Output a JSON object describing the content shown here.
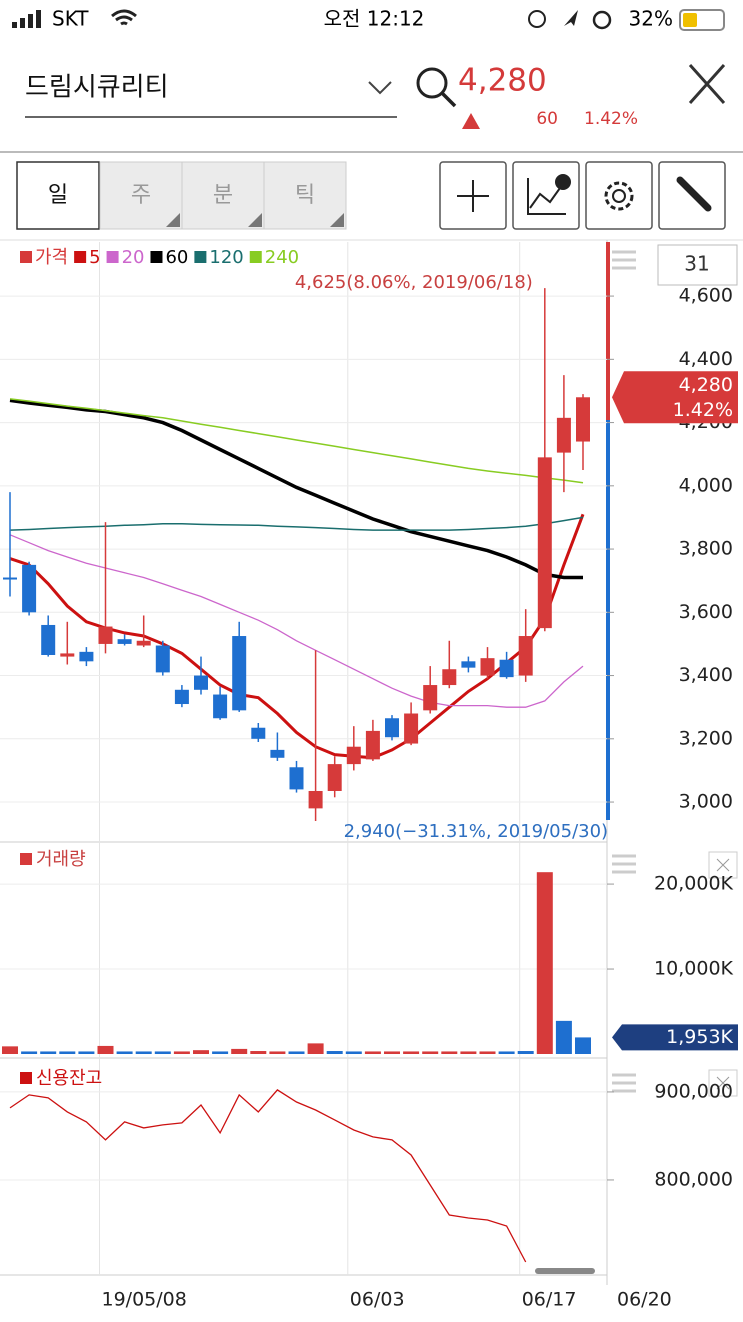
{
  "status_bar": {
    "carrier": "SKT",
    "time": "오전 12:12",
    "battery": "32%"
  },
  "header": {
    "stock_name": "드림시큐리티",
    "price": "4,280",
    "change": "60",
    "change_pct": "1.42%"
  },
  "period_tabs": [
    "일",
    "주",
    "분",
    "틱"
  ],
  "visible_count": "31",
  "chart_data": [
    {
      "type": "candlestick",
      "name": "가격",
      "up_color": "#d63a3a",
      "down_color": "#1e6fd0",
      "categories": [
        null,
        null,
        null,
        null,
        null,
        "19/05/08",
        null,
        null,
        null,
        null,
        null,
        null,
        null,
        null,
        null,
        null,
        null,
        null,
        "06/03",
        null,
        null,
        null,
        null,
        null,
        null,
        null,
        null,
        "06/17",
        null,
        null,
        "06/20"
      ],
      "open": [
        3710,
        3750,
        3560,
        3460,
        3475,
        3500,
        3515,
        3495,
        3495,
        3355,
        3400,
        3340,
        3525,
        3235,
        3165,
        3110,
        2980,
        3035,
        3120,
        3135,
        3265,
        3185,
        3290,
        3370,
        3445,
        3400,
        3450,
        3400,
        3550,
        4105,
        4140
      ],
      "high": [
        3980,
        3760,
        3590,
        3570,
        3490,
        3885,
        3530,
        3590,
        3510,
        3370,
        3460,
        3365,
        3570,
        3250,
        3220,
        3130,
        3480,
        3145,
        3240,
        3260,
        3275,
        3315,
        3430,
        3510,
        3460,
        3490,
        3475,
        3610,
        4625,
        4350,
        4290
      ],
      "low": [
        3650,
        3590,
        3460,
        3435,
        3430,
        3470,
        3495,
        3490,
        3400,
        3300,
        3340,
        3260,
        3285,
        3190,
        3130,
        3030,
        2940,
        3015,
        3100,
        3130,
        3195,
        3180,
        3280,
        3360,
        3410,
        3390,
        3390,
        3380,
        3540,
        3980,
        4050
      ],
      "close": [
        3705,
        3600,
        3465,
        3470,
        3445,
        3555,
        3500,
        3510,
        3410,
        3310,
        3355,
        3265,
        3290,
        3200,
        3140,
        3040,
        3035,
        3120,
        3175,
        3225,
        3205,
        3280,
        3370,
        3420,
        3425,
        3455,
        3395,
        3525,
        4090,
        4215,
        4280
      ],
      "series": [
        {
          "name": "5",
          "color": "#cc1111",
          "width": 3,
          "values": [
            3770,
            3750,
            3690,
            3620,
            3570,
            3550,
            3535,
            3525,
            3500,
            3470,
            3420,
            3370,
            3340,
            3330,
            3280,
            3220,
            3175,
            3150,
            3145,
            3140,
            3165,
            3200,
            3250,
            3300,
            3350,
            3390,
            3440,
            3490,
            3580,
            3750,
            3910
          ]
        },
        {
          "name": "20",
          "color": "#cc66cc",
          "width": 1.3,
          "values": [
            3845,
            3820,
            3795,
            3775,
            3755,
            3740,
            3725,
            3710,
            3690,
            3670,
            3650,
            3625,
            3600,
            3575,
            3545,
            3510,
            3480,
            3450,
            3420,
            3390,
            3360,
            3335,
            3315,
            3305,
            3305,
            3305,
            3300,
            3300,
            3320,
            3380,
            3430
          ]
        },
        {
          "name": "60",
          "color": "#000000",
          "width": 3.5,
          "values": [
            4270,
            4262,
            4255,
            4248,
            4240,
            4235,
            4225,
            4215,
            4200,
            4175,
            4145,
            4115,
            4085,
            4055,
            4025,
            3995,
            3970,
            3945,
            3920,
            3895,
            3875,
            3855,
            3840,
            3825,
            3810,
            3795,
            3775,
            3750,
            3720,
            3710,
            3710
          ]
        },
        {
          "name": "120",
          "color": "#1a6e6e",
          "width": 1.5,
          "values": [
            3860,
            3862,
            3865,
            3868,
            3870,
            3872,
            3875,
            3877,
            3880,
            3880,
            3878,
            3877,
            3876,
            3875,
            3872,
            3870,
            3868,
            3865,
            3862,
            3860,
            3860,
            3860,
            3860,
            3860,
            3862,
            3865,
            3868,
            3872,
            3880,
            3890,
            3900
          ]
        },
        {
          "name": "240",
          "color": "#88cc22",
          "width": 1.5,
          "values": [
            4275,
            4268,
            4260,
            4252,
            4245,
            4238,
            4230,
            4222,
            4215,
            4205,
            4195,
            4185,
            4175,
            4165,
            4155,
            4145,
            4135,
            4125,
            4115,
            4105,
            4095,
            4085,
            4075,
            4065,
            4055,
            4047,
            4040,
            4033,
            4025,
            4018,
            4010
          ]
        }
      ],
      "ylim": [
        2880,
        4771
      ],
      "yticks": [
        {
          "value": 3000,
          "label": "3,000"
        },
        {
          "value": 3200,
          "label": "3,200"
        },
        {
          "value": 3400,
          "label": "3,400"
        },
        {
          "value": 3600,
          "label": "3,600"
        },
        {
          "value": 3800,
          "label": "3,800"
        },
        {
          "value": 4000,
          "label": "4,000"
        },
        {
          "value": 4200,
          "label": "4,200"
        },
        {
          "value": 4400,
          "label": "4,400"
        },
        {
          "value": 4600,
          "label": "4,600"
        }
      ],
      "high_annotation": "4,625(8.06%, 2019/06/18)",
      "low_annotation": "2,940(−31.31%, 2019/05/30)",
      "last_price_label": "4,280",
      "last_change_label": "1.42%"
    },
    {
      "type": "bar",
      "name": "거래량",
      "values": [
        900,
        300,
        300,
        300,
        300,
        950,
        300,
        300,
        300,
        300,
        450,
        300,
        600,
        350,
        300,
        300,
        1250,
        350,
        300,
        300,
        300,
        300,
        300,
        300,
        300,
        300,
        300,
        350,
        21400,
        3900,
        1953
      ],
      "colors": [
        "#d63a3a",
        "#1e6fd0",
        "#1e6fd0",
        "#1e6fd0",
        "#1e6fd0",
        "#d63a3a",
        "#1e6fd0",
        "#1e6fd0",
        "#1e6fd0",
        "#d63a3a",
        "#d63a3a",
        "#1e6fd0",
        "#d63a3a",
        "#d63a3a",
        "#d63a3a",
        "#1e6fd0",
        "#d63a3a",
        "#1e6fd0",
        "#1e6fd0",
        "#d63a3a",
        "#d63a3a",
        "#d63a3a",
        "#d63a3a",
        "#d63a3a",
        "#d63a3a",
        "#d63a3a",
        "#1e6fd0",
        "#1e6fd0",
        "#d63a3a",
        "#1e6fd0",
        "#1e6fd0"
      ],
      "ylim": [
        0,
        24600
      ],
      "yticks": [
        {
          "value": 10000,
          "label": "10,000K"
        },
        {
          "value": 20000,
          "label": "20,000K"
        }
      ],
      "last_value_label": "1,953K"
    },
    {
      "type": "line",
      "series": [
        {
          "name": "신용잔고",
          "color": "#cc1111",
          "values": [
            881800,
            896600,
            893200,
            877300,
            865900,
            845500,
            865900,
            859100,
            862500,
            864800,
            885200,
            853400,
            896600,
            877300,
            902300,
            888600,
            879500,
            868200,
            856800,
            848900,
            845500,
            828400,
            794300,
            760200,
            756800,
            754500,
            747700,
            706800,
            null,
            null,
            null
          ]
        }
      ],
      "ylim": [
        697700,
        934000
      ],
      "yticks": [
        {
          "value": 800000,
          "label": "800,000"
        },
        {
          "value": 900000,
          "label": "900,000"
        }
      ]
    }
  ]
}
